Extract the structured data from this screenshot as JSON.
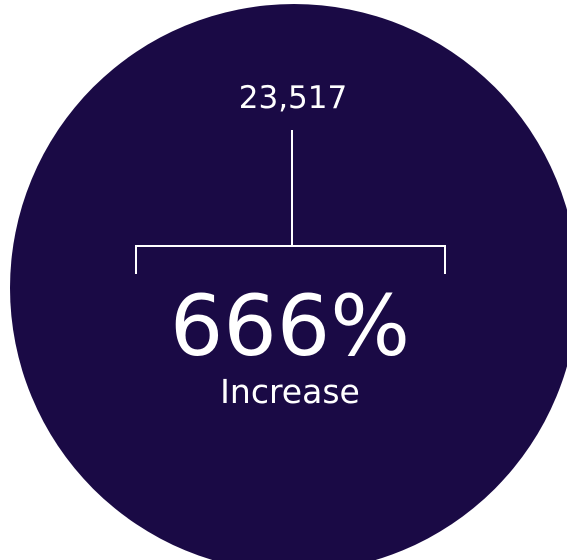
{
  "stat": {
    "number": "23,517",
    "percentage": "666%",
    "label": "Increase"
  }
}
